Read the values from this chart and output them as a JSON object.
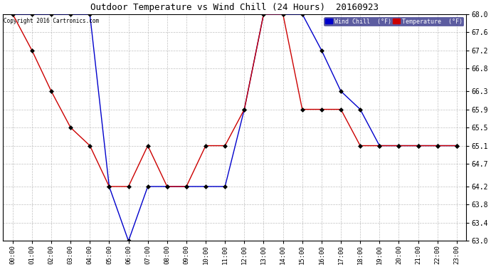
{
  "title": "Outdoor Temperature vs Wind Chill (24 Hours)  20160923",
  "copyright": "Copyright 2016 Cartronics.com",
  "x_labels": [
    "00:00",
    "01:00",
    "02:00",
    "03:00",
    "04:00",
    "05:00",
    "06:00",
    "07:00",
    "08:00",
    "09:00",
    "10:00",
    "11:00",
    "12:00",
    "13:00",
    "14:00",
    "15:00",
    "16:00",
    "17:00",
    "18:00",
    "19:00",
    "20:00",
    "21:00",
    "22:00",
    "23:00"
  ],
  "y_ticks": [
    63.0,
    63.4,
    63.8,
    64.2,
    64.7,
    65.1,
    65.5,
    65.9,
    66.3,
    66.8,
    67.2,
    67.6,
    68.0
  ],
  "ylim": [
    63.0,
    68.0
  ],
  "temperature": [
    68.0,
    67.2,
    66.3,
    65.5,
    65.1,
    64.2,
    64.2,
    65.1,
    64.2,
    64.2,
    65.1,
    65.1,
    65.9,
    68.0,
    68.0,
    65.9,
    65.9,
    65.9,
    65.1,
    65.1,
    65.1,
    65.1,
    65.1,
    65.1
  ],
  "wind_chill": [
    68.0,
    68.0,
    68.0,
    68.0,
    68.0,
    64.2,
    63.0,
    64.2,
    64.2,
    64.2,
    64.2,
    64.2,
    65.9,
    68.0,
    68.0,
    68.0,
    67.2,
    66.3,
    65.9,
    65.1,
    65.1,
    65.1,
    65.1,
    65.1
  ],
  "temp_color": "#cc0000",
  "wind_chill_color": "#0000cc",
  "marker_size": 3,
  "bg_color": "#ffffff",
  "grid_color": "#b0b0b0"
}
